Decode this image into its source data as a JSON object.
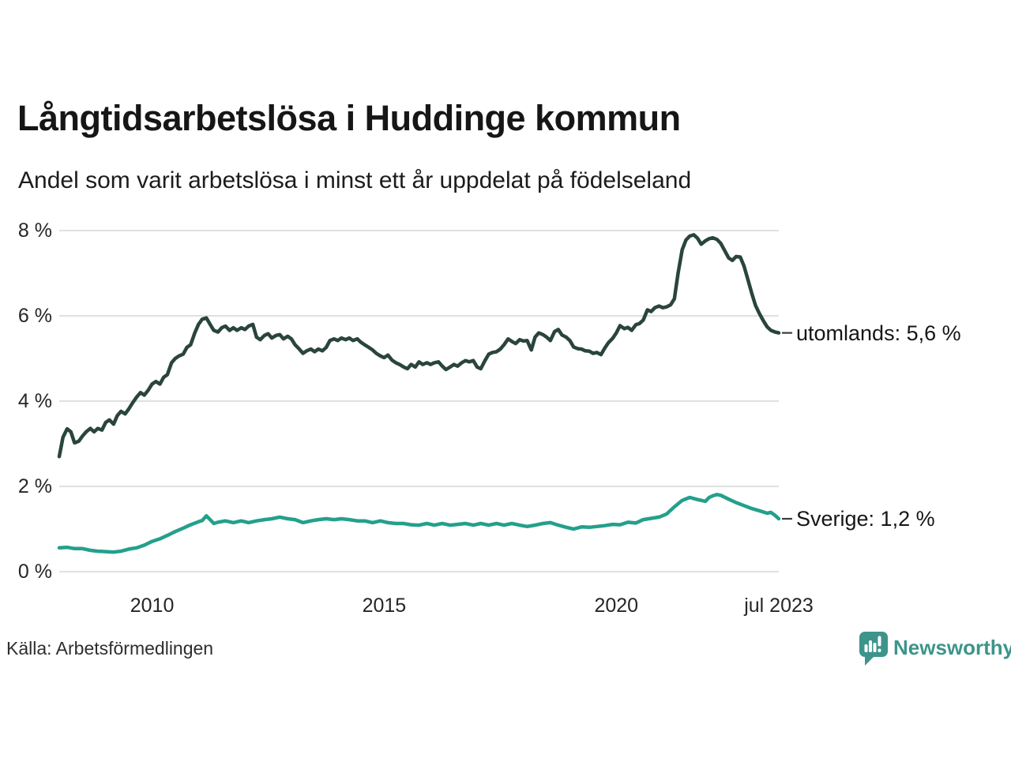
{
  "chart_data": {
    "type": "line",
    "title": "Långtidsarbetslösa i Huddinge kommun",
    "subtitle": "Andel som varit arbetslösa i minst ett år uppdelat på födelseland",
    "source": "Källa: Arbetsförmedlingen",
    "legend_position": "end-labels-right",
    "grid": true,
    "x_axis": {
      "range": [
        2008.0,
        2023.5
      ],
      "ticks": [
        {
          "x": 2010,
          "label": "2010"
        },
        {
          "x": 2015,
          "label": "2015"
        },
        {
          "x": 2020,
          "label": "2020"
        },
        {
          "x": 2023.5,
          "label": "jul 2023"
        }
      ]
    },
    "y_axis": {
      "unit": "%",
      "range": [
        0,
        8
      ],
      "ticks": [
        {
          "v": 0,
          "label": "0 %"
        },
        {
          "v": 2,
          "label": "2 %"
        },
        {
          "v": 4,
          "label": "4 %"
        },
        {
          "v": 6,
          "label": "6 %"
        },
        {
          "v": 8,
          "label": "8 %"
        }
      ]
    },
    "series": [
      {
        "name": "utomlands",
        "color": "#2a443e",
        "last_value": 5.6,
        "end_label": "utomlands: 5,6 %",
        "points": [
          [
            2008.0,
            2.7
          ],
          [
            2008.08,
            3.15
          ],
          [
            2008.17,
            3.35
          ],
          [
            2008.25,
            3.28
          ],
          [
            2008.33,
            3.02
          ],
          [
            2008.42,
            3.06
          ],
          [
            2008.5,
            3.18
          ],
          [
            2008.58,
            3.28
          ],
          [
            2008.67,
            3.36
          ],
          [
            2008.75,
            3.28
          ],
          [
            2008.83,
            3.36
          ],
          [
            2008.92,
            3.32
          ],
          [
            2009.0,
            3.5
          ],
          [
            2009.08,
            3.56
          ],
          [
            2009.17,
            3.46
          ],
          [
            2009.25,
            3.66
          ],
          [
            2009.33,
            3.76
          ],
          [
            2009.42,
            3.7
          ],
          [
            2009.5,
            3.82
          ],
          [
            2009.58,
            3.96
          ],
          [
            2009.67,
            4.1
          ],
          [
            2009.75,
            4.2
          ],
          [
            2009.83,
            4.14
          ],
          [
            2009.92,
            4.26
          ],
          [
            2010.0,
            4.4
          ],
          [
            2010.08,
            4.46
          ],
          [
            2010.17,
            4.4
          ],
          [
            2010.25,
            4.56
          ],
          [
            2010.33,
            4.62
          ],
          [
            2010.42,
            4.9
          ],
          [
            2010.5,
            5.0
          ],
          [
            2010.58,
            5.06
          ],
          [
            2010.67,
            5.1
          ],
          [
            2010.75,
            5.26
          ],
          [
            2010.83,
            5.32
          ],
          [
            2010.92,
            5.6
          ],
          [
            2011.0,
            5.8
          ],
          [
            2011.08,
            5.92
          ],
          [
            2011.17,
            5.95
          ],
          [
            2011.25,
            5.8
          ],
          [
            2011.33,
            5.66
          ],
          [
            2011.42,
            5.62
          ],
          [
            2011.5,
            5.72
          ],
          [
            2011.58,
            5.76
          ],
          [
            2011.67,
            5.66
          ],
          [
            2011.75,
            5.72
          ],
          [
            2011.83,
            5.66
          ],
          [
            2011.92,
            5.72
          ],
          [
            2012.0,
            5.68
          ],
          [
            2012.08,
            5.76
          ],
          [
            2012.17,
            5.8
          ],
          [
            2012.25,
            5.5
          ],
          [
            2012.33,
            5.44
          ],
          [
            2012.42,
            5.54
          ],
          [
            2012.5,
            5.58
          ],
          [
            2012.58,
            5.48
          ],
          [
            2012.67,
            5.54
          ],
          [
            2012.75,
            5.56
          ],
          [
            2012.83,
            5.46
          ],
          [
            2012.92,
            5.52
          ],
          [
            2013.0,
            5.46
          ],
          [
            2013.08,
            5.32
          ],
          [
            2013.17,
            5.22
          ],
          [
            2013.25,
            5.12
          ],
          [
            2013.33,
            5.18
          ],
          [
            2013.42,
            5.22
          ],
          [
            2013.5,
            5.16
          ],
          [
            2013.58,
            5.22
          ],
          [
            2013.67,
            5.18
          ],
          [
            2013.75,
            5.26
          ],
          [
            2013.83,
            5.42
          ],
          [
            2013.92,
            5.46
          ],
          [
            2014.0,
            5.42
          ],
          [
            2014.08,
            5.48
          ],
          [
            2014.17,
            5.44
          ],
          [
            2014.25,
            5.48
          ],
          [
            2014.33,
            5.42
          ],
          [
            2014.42,
            5.46
          ],
          [
            2014.5,
            5.38
          ],
          [
            2014.58,
            5.32
          ],
          [
            2014.67,
            5.26
          ],
          [
            2014.75,
            5.2
          ],
          [
            2014.83,
            5.12
          ],
          [
            2014.92,
            5.06
          ],
          [
            2015.0,
            5.02
          ],
          [
            2015.08,
            5.08
          ],
          [
            2015.17,
            4.96
          ],
          [
            2015.25,
            4.9
          ],
          [
            2015.33,
            4.86
          ],
          [
            2015.42,
            4.8
          ],
          [
            2015.5,
            4.76
          ],
          [
            2015.58,
            4.86
          ],
          [
            2015.67,
            4.8
          ],
          [
            2015.75,
            4.92
          ],
          [
            2015.83,
            4.86
          ],
          [
            2015.92,
            4.9
          ],
          [
            2016.0,
            4.86
          ],
          [
            2016.08,
            4.9
          ],
          [
            2016.17,
            4.92
          ],
          [
            2016.25,
            4.82
          ],
          [
            2016.33,
            4.74
          ],
          [
            2016.42,
            4.8
          ],
          [
            2016.5,
            4.86
          ],
          [
            2016.58,
            4.82
          ],
          [
            2016.67,
            4.9
          ],
          [
            2016.75,
            4.95
          ],
          [
            2016.83,
            4.92
          ],
          [
            2016.92,
            4.95
          ],
          [
            2017.0,
            4.8
          ],
          [
            2017.08,
            4.76
          ],
          [
            2017.17,
            4.95
          ],
          [
            2017.25,
            5.1
          ],
          [
            2017.33,
            5.14
          ],
          [
            2017.42,
            5.16
          ],
          [
            2017.5,
            5.22
          ],
          [
            2017.58,
            5.32
          ],
          [
            2017.67,
            5.46
          ],
          [
            2017.75,
            5.4
          ],
          [
            2017.83,
            5.35
          ],
          [
            2017.92,
            5.44
          ],
          [
            2018.0,
            5.41
          ],
          [
            2018.08,
            5.42
          ],
          [
            2018.17,
            5.2
          ],
          [
            2018.25,
            5.5
          ],
          [
            2018.33,
            5.6
          ],
          [
            2018.42,
            5.56
          ],
          [
            2018.5,
            5.5
          ],
          [
            2018.58,
            5.42
          ],
          [
            2018.67,
            5.63
          ],
          [
            2018.75,
            5.68
          ],
          [
            2018.83,
            5.55
          ],
          [
            2018.92,
            5.5
          ],
          [
            2019.0,
            5.42
          ],
          [
            2019.08,
            5.27
          ],
          [
            2019.17,
            5.23
          ],
          [
            2019.25,
            5.22
          ],
          [
            2019.33,
            5.18
          ],
          [
            2019.42,
            5.17
          ],
          [
            2019.5,
            5.12
          ],
          [
            2019.58,
            5.14
          ],
          [
            2019.67,
            5.09
          ],
          [
            2019.75,
            5.24
          ],
          [
            2019.83,
            5.37
          ],
          [
            2019.92,
            5.47
          ],
          [
            2020.0,
            5.6
          ],
          [
            2020.08,
            5.77
          ],
          [
            2020.17,
            5.7
          ],
          [
            2020.25,
            5.73
          ],
          [
            2020.33,
            5.66
          ],
          [
            2020.42,
            5.79
          ],
          [
            2020.5,
            5.82
          ],
          [
            2020.58,
            5.9
          ],
          [
            2020.67,
            6.14
          ],
          [
            2020.75,
            6.1
          ],
          [
            2020.83,
            6.19
          ],
          [
            2020.92,
            6.23
          ],
          [
            2021.0,
            6.19
          ],
          [
            2021.08,
            6.21
          ],
          [
            2021.17,
            6.26
          ],
          [
            2021.25,
            6.4
          ],
          [
            2021.33,
            7.0
          ],
          [
            2021.42,
            7.55
          ],
          [
            2021.5,
            7.78
          ],
          [
            2021.58,
            7.87
          ],
          [
            2021.67,
            7.9
          ],
          [
            2021.75,
            7.82
          ],
          [
            2021.83,
            7.68
          ],
          [
            2021.92,
            7.76
          ],
          [
            2022.0,
            7.81
          ],
          [
            2022.08,
            7.83
          ],
          [
            2022.17,
            7.79
          ],
          [
            2022.25,
            7.7
          ],
          [
            2022.33,
            7.54
          ],
          [
            2022.42,
            7.36
          ],
          [
            2022.5,
            7.3
          ],
          [
            2022.58,
            7.39
          ],
          [
            2022.67,
            7.38
          ],
          [
            2022.75,
            7.17
          ],
          [
            2022.83,
            6.87
          ],
          [
            2022.92,
            6.52
          ],
          [
            2023.0,
            6.24
          ],
          [
            2023.08,
            6.06
          ],
          [
            2023.17,
            5.88
          ],
          [
            2023.25,
            5.74
          ],
          [
            2023.33,
            5.66
          ],
          [
            2023.42,
            5.62
          ],
          [
            2023.5,
            5.6
          ]
        ]
      },
      {
        "name": "Sverige",
        "color": "#23a08c",
        "last_value": 1.2,
        "end_label": "Sverige: 1,2 %",
        "points": [
          [
            2008.0,
            0.56
          ],
          [
            2008.17,
            0.57
          ],
          [
            2008.33,
            0.54
          ],
          [
            2008.5,
            0.54
          ],
          [
            2008.67,
            0.5
          ],
          [
            2008.83,
            0.48
          ],
          [
            2009.0,
            0.47
          ],
          [
            2009.17,
            0.46
          ],
          [
            2009.33,
            0.48
          ],
          [
            2009.5,
            0.53
          ],
          [
            2009.67,
            0.56
          ],
          [
            2009.83,
            0.62
          ],
          [
            2010.0,
            0.71
          ],
          [
            2010.17,
            0.77
          ],
          [
            2010.33,
            0.85
          ],
          [
            2010.5,
            0.94
          ],
          [
            2010.67,
            1.02
          ],
          [
            2010.83,
            1.1
          ],
          [
            2011.0,
            1.17
          ],
          [
            2011.08,
            1.2
          ],
          [
            2011.17,
            1.31
          ],
          [
            2011.25,
            1.22
          ],
          [
            2011.33,
            1.13
          ],
          [
            2011.42,
            1.16
          ],
          [
            2011.58,
            1.19
          ],
          [
            2011.75,
            1.15
          ],
          [
            2011.92,
            1.19
          ],
          [
            2012.08,
            1.15
          ],
          [
            2012.25,
            1.19
          ],
          [
            2012.42,
            1.22
          ],
          [
            2012.58,
            1.24
          ],
          [
            2012.75,
            1.28
          ],
          [
            2012.92,
            1.24
          ],
          [
            2013.08,
            1.22
          ],
          [
            2013.25,
            1.15
          ],
          [
            2013.42,
            1.19
          ],
          [
            2013.58,
            1.22
          ],
          [
            2013.75,
            1.24
          ],
          [
            2013.92,
            1.22
          ],
          [
            2014.08,
            1.24
          ],
          [
            2014.25,
            1.22
          ],
          [
            2014.42,
            1.19
          ],
          [
            2014.58,
            1.19
          ],
          [
            2014.75,
            1.15
          ],
          [
            2014.92,
            1.19
          ],
          [
            2015.08,
            1.15
          ],
          [
            2015.25,
            1.13
          ],
          [
            2015.42,
            1.13
          ],
          [
            2015.58,
            1.1
          ],
          [
            2015.75,
            1.09
          ],
          [
            2015.92,
            1.13
          ],
          [
            2016.08,
            1.09
          ],
          [
            2016.25,
            1.13
          ],
          [
            2016.42,
            1.09
          ],
          [
            2016.58,
            1.11
          ],
          [
            2016.75,
            1.13
          ],
          [
            2016.92,
            1.09
          ],
          [
            2017.08,
            1.13
          ],
          [
            2017.25,
            1.09
          ],
          [
            2017.42,
            1.13
          ],
          [
            2017.58,
            1.09
          ],
          [
            2017.75,
            1.13
          ],
          [
            2017.92,
            1.09
          ],
          [
            2018.08,
            1.06
          ],
          [
            2018.25,
            1.09
          ],
          [
            2018.42,
            1.13
          ],
          [
            2018.58,
            1.15
          ],
          [
            2018.75,
            1.09
          ],
          [
            2018.92,
            1.04
          ],
          [
            2019.08,
            1.0
          ],
          [
            2019.25,
            1.05
          ],
          [
            2019.42,
            1.04
          ],
          [
            2019.58,
            1.06
          ],
          [
            2019.75,
            1.08
          ],
          [
            2019.92,
            1.11
          ],
          [
            2020.08,
            1.1
          ],
          [
            2020.25,
            1.16
          ],
          [
            2020.42,
            1.14
          ],
          [
            2020.58,
            1.22
          ],
          [
            2020.75,
            1.25
          ],
          [
            2020.92,
            1.28
          ],
          [
            2021.08,
            1.35
          ],
          [
            2021.25,
            1.52
          ],
          [
            2021.42,
            1.67
          ],
          [
            2021.58,
            1.74
          ],
          [
            2021.75,
            1.69
          ],
          [
            2021.92,
            1.65
          ],
          [
            2022.0,
            1.74
          ],
          [
            2022.08,
            1.78
          ],
          [
            2022.17,
            1.81
          ],
          [
            2022.25,
            1.79
          ],
          [
            2022.42,
            1.7
          ],
          [
            2022.58,
            1.62
          ],
          [
            2022.75,
            1.55
          ],
          [
            2022.92,
            1.48
          ],
          [
            2023.08,
            1.43
          ],
          [
            2023.25,
            1.37
          ],
          [
            2023.33,
            1.39
          ],
          [
            2023.42,
            1.32
          ],
          [
            2023.5,
            1.24
          ]
        ]
      }
    ]
  },
  "footer": {
    "brand_name": "Newsworthy"
  },
  "colors": {
    "grid": "#e0e0e0",
    "connector": "#3c3c3c",
    "brand_teal": "#3d948b",
    "background": "#ffffff"
  }
}
